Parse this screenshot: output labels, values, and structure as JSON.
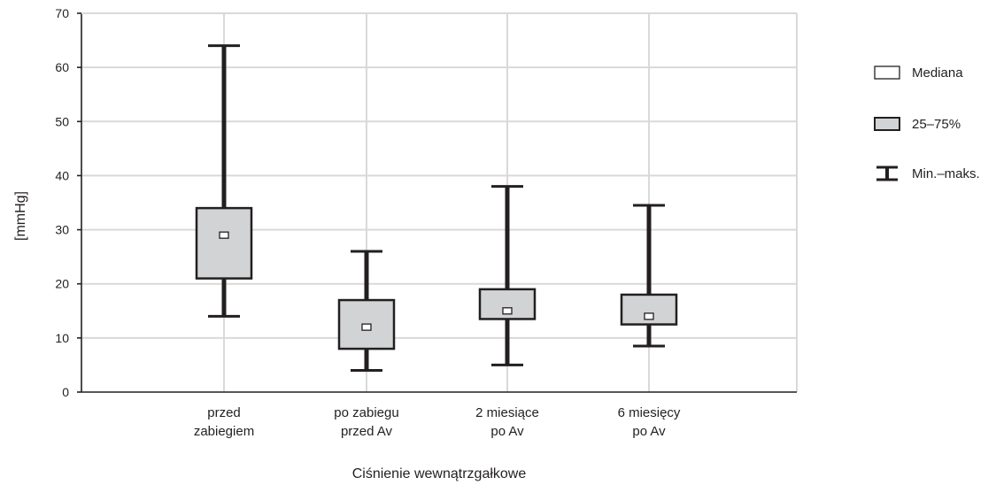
{
  "chart_data": {
    "type": "boxplot",
    "title": "",
    "xlabel": "Ciśnienie wewnątrzgałkowe",
    "ylabel": "[mmHg]",
    "ylim": [
      0,
      70
    ],
    "yticks": [
      0,
      10,
      20,
      30,
      40,
      50,
      60,
      70
    ],
    "grid": true,
    "legend_position": "right",
    "categories": [
      [
        "przed",
        "zabiegiem"
      ],
      [
        "po zabiegu",
        "przed Av"
      ],
      [
        "2 miesiące",
        "po Av"
      ],
      [
        "6 miesięcy",
        "po Av"
      ]
    ],
    "series": [
      {
        "category": "przed zabiegiem",
        "min": 14,
        "q1": 21,
        "median": 29,
        "q3": 34,
        "max": 64
      },
      {
        "category": "po zabiegu przed Av",
        "min": 4,
        "q1": 8,
        "median": 12,
        "q3": 17,
        "max": 26
      },
      {
        "category": "2 miesiące po Av",
        "min": 5,
        "q1": 13.5,
        "median": 15,
        "q3": 19,
        "max": 38
      },
      {
        "category": "6 miesięcy po Av",
        "min": 8.5,
        "q1": 12.5,
        "median": 14,
        "q3": 18,
        "max": 34.5
      }
    ],
    "legend": [
      {
        "key": "median",
        "label": "Mediana"
      },
      {
        "key": "iqr",
        "label": "25–75%"
      },
      {
        "key": "range",
        "label": "Min.–maks."
      }
    ],
    "colors": {
      "box_fill": "#d1d3d4",
      "stroke": "#231f20",
      "grid": "#d9d9d9",
      "median_fill": "#ffffff"
    }
  }
}
